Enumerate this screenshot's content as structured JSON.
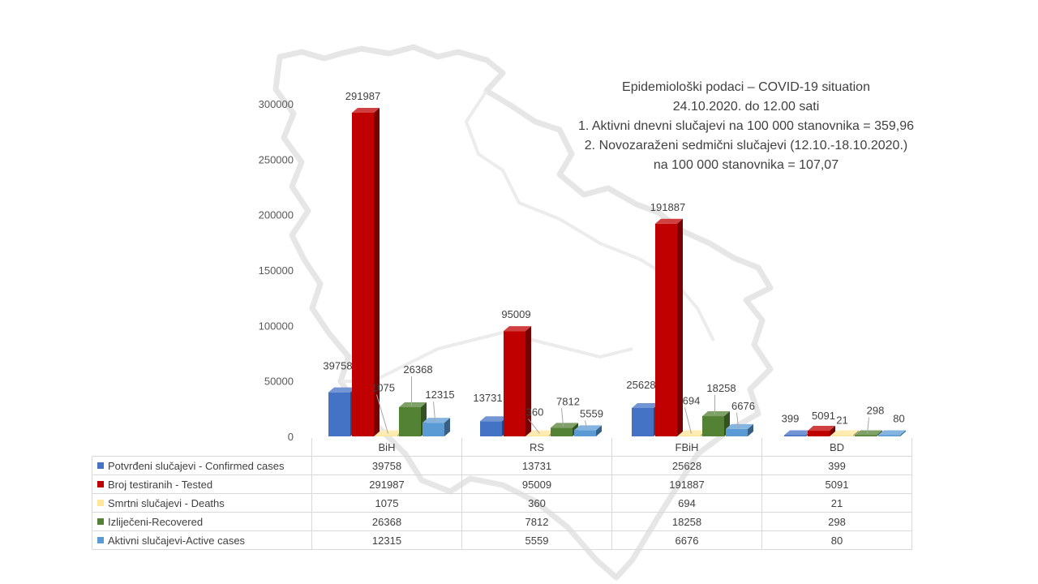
{
  "title_lines": [
    "Epidemiološki podaci – COVID-19 situation",
    "24.10.2020. do 12.00 sati",
    "1. Aktivni dnevni slučajevi na 100 000 stanovnika = 359,96",
    "2. Novozaraženi sedmični slučajevi (12.10.-18.10.2020.)",
    "na 100 000 stanovnika = 107,07"
  ],
  "chart_data": {
    "type": "bar",
    "categories": [
      "BiH",
      "RS",
      "FBiH",
      "BD"
    ],
    "ylim": [
      0,
      300000
    ],
    "yticks": [
      0,
      50000,
      100000,
      150000,
      200000,
      250000,
      300000
    ],
    "legend_position": "bottom (data table)",
    "grid": false,
    "series": [
      {
        "name": "Potvrđeni slučajevi - Confirmed cases",
        "color": "#4472c4",
        "values": [
          39758,
          13731,
          25628,
          399
        ]
      },
      {
        "name": "Broj testiranih - Tested",
        "color": "#c00000",
        "values": [
          291987,
          95009,
          191887,
          5091
        ]
      },
      {
        "name": "Smrtni slučajevi - Deaths",
        "color": "#ffe699",
        "values": [
          1075,
          360,
          694,
          21
        ]
      },
      {
        "name": "Izliječeni-Recovered",
        "color": "#548235",
        "values": [
          26368,
          7812,
          18258,
          298
        ]
      },
      {
        "name": "Aktivni slučajevi-Active cases",
        "color": "#5b9bd5",
        "values": [
          12315,
          5559,
          6676,
          80
        ]
      }
    ]
  }
}
